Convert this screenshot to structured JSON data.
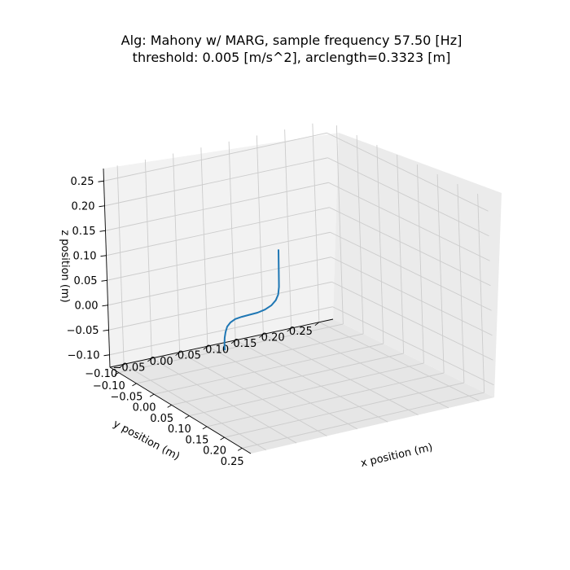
{
  "chart_data": {
    "type": "line",
    "projection": "3d",
    "title_lines": [
      "Alg: Mahony w/ MARG, sample frequency 57.50 [Hz]",
      "threshold: 0.005 [m/s^2], arclength=0.3323 [m]"
    ],
    "xlabel": "x position (m)",
    "ylabel": "y position (m)",
    "zlabel": "z position (m)",
    "xlim": [
      -0.125,
      0.275
    ],
    "ylim": [
      -0.125,
      0.275
    ],
    "zlim": [
      -0.125,
      0.275
    ],
    "x_ticks": [
      "−0.10",
      "−0.05",
      "0.00",
      "0.05",
      "0.10",
      "0.15",
      "0.20",
      "0.25"
    ],
    "y_ticks": [
      "−0.10",
      "−0.05",
      "0.00",
      "0.05",
      "0.10",
      "0.15",
      "0.20",
      "0.25"
    ],
    "z_ticks": [
      "−0.10",
      "−0.05",
      "0.00",
      "0.05",
      "0.10",
      "0.15",
      "0.20",
      "0.25"
    ],
    "grid": true,
    "series": [
      {
        "color": "#1f77b4",
        "points": [
          [
            0.0,
            0.0,
            -0.067
          ],
          [
            0.0,
            0.0,
            -0.055
          ],
          [
            0.001,
            0.0,
            -0.043
          ],
          [
            0.004,
            0.0,
            -0.03
          ],
          [
            0.009,
            0.0,
            -0.017
          ],
          [
            0.018,
            0.0,
            -0.005
          ],
          [
            0.032,
            0.0,
            0.008
          ],
          [
            0.05,
            0.0,
            0.02
          ],
          [
            0.071,
            0.0,
            0.033
          ],
          [
            0.094,
            0.0,
            0.047
          ],
          [
            0.115,
            0.0,
            0.062
          ],
          [
            0.133,
            0.0,
            0.078
          ],
          [
            0.146,
            0.0,
            0.094
          ],
          [
            0.153,
            0.0,
            0.108
          ],
          [
            0.156,
            0.0,
            0.125
          ],
          [
            0.157,
            0.0,
            0.165
          ],
          [
            0.158,
            0.0,
            0.2
          ]
        ]
      }
    ]
  }
}
